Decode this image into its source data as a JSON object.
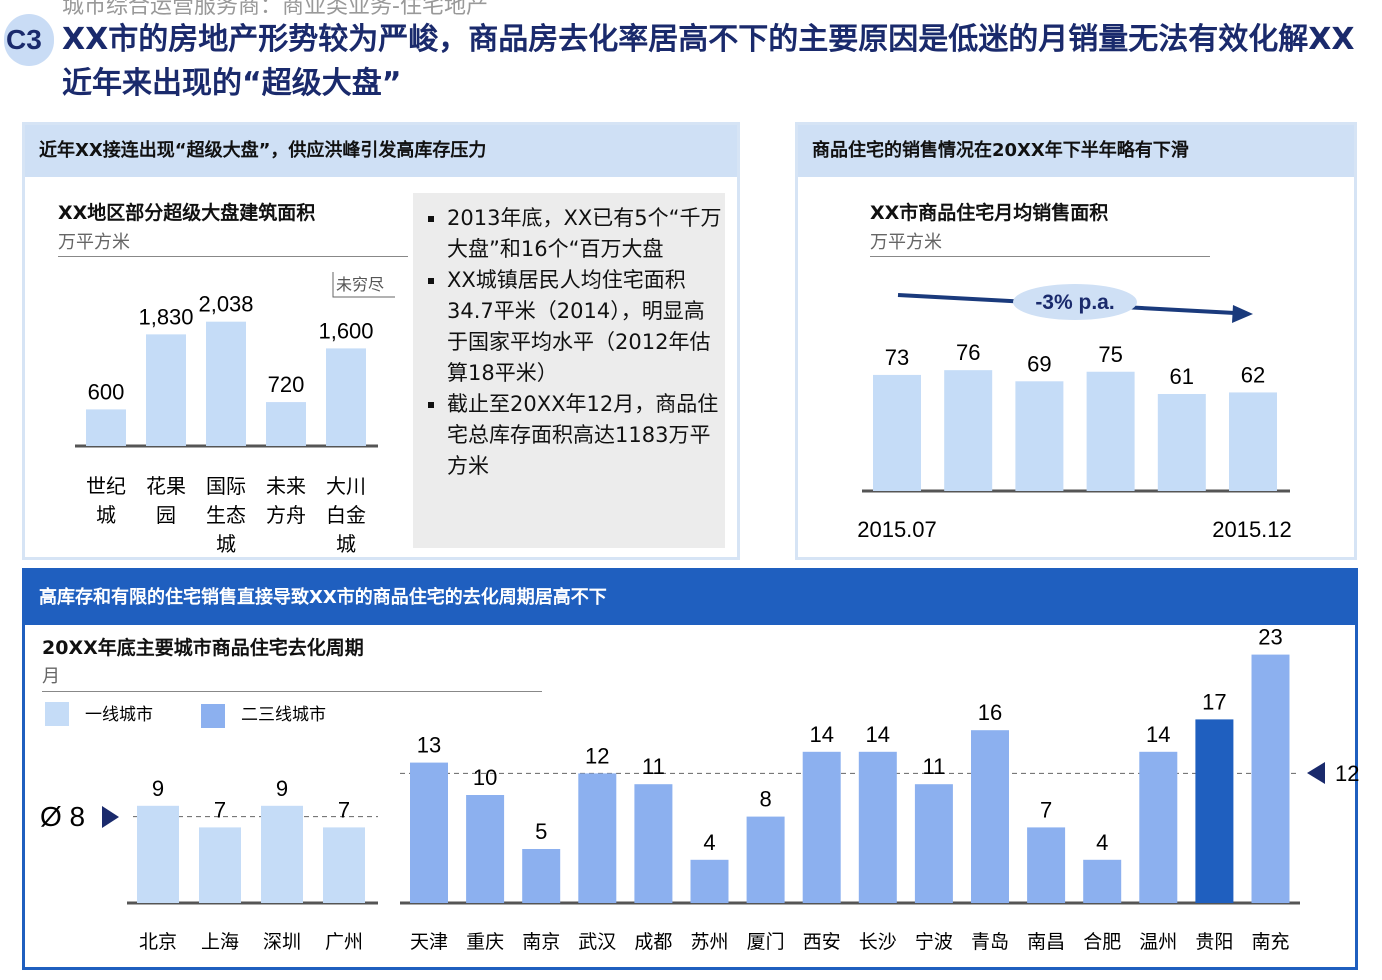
{
  "header": {
    "breadcrumb": "城市综合运营服务商：商业类业务-住宅地产",
    "badge": "C3",
    "title": "XX市的房地产形势较为严峻，商品房去化率居高不下的主要原因是低迷的月销量无法有效化解XX近年来出现的“超级大盘”"
  },
  "panel_left": {
    "header": "近年XX接连出现“超级大盘”，供应洪峰引发高库存压力",
    "bullets": [
      "2013年底，XX已有5个“千万大盘”和16个“百万大盘",
      "XX城镇居民人均住宅面积34.7平米（2014），明显高于国家平均水平（2012年估算18平米）",
      "截止至20XX年12月，商品住宅总库存面积高达1183万平方米"
    ]
  },
  "panel_right": {
    "header": "商品住宅的销售情况在20XX年下半年略有下滑"
  },
  "panel_bottom": {
    "header": "高库存和有限的住宅销售直接导致XX市的商品住宅的去化周期居高不下"
  },
  "chart_data": [
    {
      "type": "bar",
      "title": "XX地区部分超级大盘建筑面积",
      "ylabel": "万平方米",
      "categories": [
        "世纪城",
        "花果园",
        "国际生态城",
        "未来方舟",
        "大川白金城"
      ],
      "values": [
        600,
        1830,
        2038,
        720,
        1600
      ],
      "labels": [
        "600",
        "1,830",
        "2,038",
        "720",
        "1,600"
      ],
      "annotation": "未穷尽",
      "color": "#c5dcf7"
    },
    {
      "type": "bar",
      "title": "XX市商品住宅月均销售面积",
      "ylabel": "万平方米",
      "x_start": "2015.07",
      "x_end": "2015.12",
      "values": [
        73,
        76,
        69,
        75,
        61,
        62
      ],
      "trend_label": "-3% p.a.",
      "color": "#c5dcf7",
      "trend_color": "#1a3a7c"
    },
    {
      "type": "bar",
      "title": "20XX年底主要城市商品住宅去化周期",
      "ylabel": "月",
      "series": [
        {
          "name": "一线城市",
          "categories": [
            "北京",
            "上海",
            "深圳",
            "广州"
          ],
          "values": [
            9,
            7,
            9,
            7
          ],
          "average": 8,
          "average_label": "Ø 8",
          "color": "#c5dcf7"
        },
        {
          "name": "二三线城市",
          "categories": [
            "天津",
            "重庆",
            "南京",
            "武汉",
            "成都",
            "苏州",
            "厦门",
            "西安",
            "长沙",
            "宁波",
            "青岛",
            "南昌",
            "合肥",
            "温州",
            "贵阳",
            "南充"
          ],
          "values": [
            13,
            10,
            5,
            12,
            11,
            4,
            8,
            14,
            14,
            11,
            16,
            7,
            4,
            14,
            17,
            23
          ],
          "average": 12,
          "average_label": "12",
          "color": "#8cb0ef",
          "highlight": "贵阳",
          "highlight_color": "#1f5fbf"
        }
      ]
    }
  ]
}
